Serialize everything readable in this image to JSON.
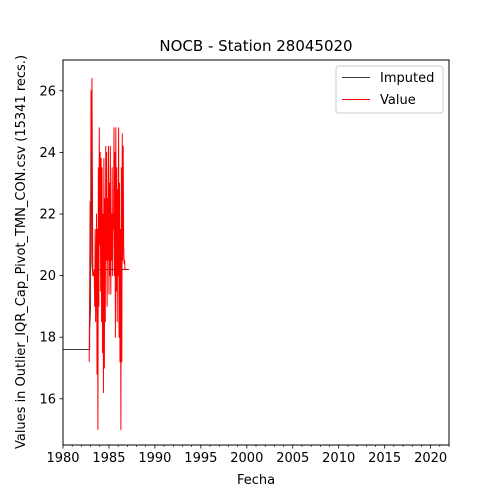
{
  "chart_data": {
    "type": "line",
    "title": "NOCB - Station 28045020",
    "xlabel": "Fecha",
    "ylabel": "Values in Outlier_IQR_Cap_Pivot_TMN_CON.csv (15341 recs.)",
    "xlim": [
      1980,
      2022
    ],
    "ylim": [
      14.5,
      27.0
    ],
    "x_ticks": [
      1980,
      1985,
      1990,
      1995,
      2000,
      2005,
      2010,
      2015,
      2020
    ],
    "y_ticks": [
      16,
      18,
      20,
      22,
      24,
      26
    ],
    "legend_position": "top-right",
    "series": [
      {
        "name": "Imputed",
        "color": "#404040",
        "x": [
          1980.0,
          1982.9,
          1982.9,
          1983.0,
          1983.0,
          1983.05,
          1983.1,
          1983.15,
          1983.15,
          1983.25,
          1983.3,
          1983.3,
          1983.4,
          1983.4,
          1983.9,
          1983.9,
          1985.0,
          1985.0,
          1985.8,
          1985.8,
          1986.3,
          1986.3,
          1987.0
        ],
        "values": [
          17.6,
          17.6,
          18.2,
          19.0,
          20.5,
          22.4,
          26.0,
          23.2,
          20.4,
          20.0,
          20.0,
          20.0,
          20.0,
          20.0,
          20.0,
          20.2,
          20.2,
          20.2,
          20.2,
          20.2,
          20.2,
          20.2,
          20.2
        ]
      },
      {
        "name": "Value",
        "color": "#ff0000",
        "x": [
          1982.85,
          1982.9,
          1982.95,
          1983.0,
          1983.05,
          1983.1,
          1983.15,
          1983.2,
          1983.25,
          1983.3,
          1983.35,
          1983.4,
          1983.45,
          1983.5,
          1983.55,
          1983.6,
          1983.65,
          1983.7,
          1983.75,
          1983.8,
          1983.85,
          1983.9,
          1983.95,
          1984.0,
          1984.05,
          1984.1,
          1984.15,
          1984.2,
          1984.25,
          1984.3,
          1984.35,
          1984.4,
          1984.45,
          1984.5,
          1984.55,
          1984.6,
          1984.65,
          1984.7,
          1984.75,
          1984.8,
          1984.85,
          1984.9,
          1984.95,
          1985.0,
          1985.05,
          1985.1,
          1985.15,
          1985.2,
          1985.25,
          1985.3,
          1985.35,
          1985.4,
          1985.45,
          1985.5,
          1985.55,
          1985.6,
          1985.65,
          1985.7,
          1985.75,
          1985.8,
          1985.85,
          1985.9,
          1985.95,
          1986.0,
          1986.05,
          1986.1,
          1986.15,
          1986.2,
          1986.25,
          1986.3,
          1986.35,
          1986.4,
          1986.45,
          1986.5,
          1986.55,
          1986.6,
          1986.65,
          1986.7,
          1986.75,
          1986.8,
          1986.85,
          1986.9,
          1986.95,
          1987.0,
          1987.05,
          1987.1,
          1987.15,
          1987.2
        ],
        "values": [
          17.2,
          19.5,
          22.4,
          20.5,
          26.0,
          24.0,
          26.4,
          23.2,
          20.0,
          20.0,
          20.0,
          20.2,
          19.0,
          21.5,
          18.5,
          20.0,
          22.0,
          16.8,
          21.5,
          15.0,
          23.5,
          19.0,
          24.8,
          21.0,
          24.0,
          19.5,
          23.8,
          18.5,
          23.5,
          17.5,
          22.0,
          16.2,
          23.8,
          17.0,
          22.5,
          18.5,
          24.2,
          20.5,
          24.0,
          19.0,
          22.5,
          20.5,
          24.2,
          19.4,
          23.0,
          20.0,
          24.2,
          19.4,
          22.0,
          20.5,
          23.5,
          20.0,
          22.0,
          21.5,
          24.8,
          20.0,
          24.0,
          18.0,
          24.8,
          19.5,
          23.5,
          18.5,
          22.8,
          20.0,
          24.8,
          18.0,
          23.0,
          17.2,
          21.5,
          15.0,
          23.5,
          17.2,
          24.6,
          20.5,
          24.2,
          21.0,
          20.4,
          20.5,
          20.2,
          20.2,
          20.2,
          20.2,
          20.2,
          20.2,
          20.2,
          20.2,
          20.2,
          20.2
        ]
      }
    ]
  }
}
